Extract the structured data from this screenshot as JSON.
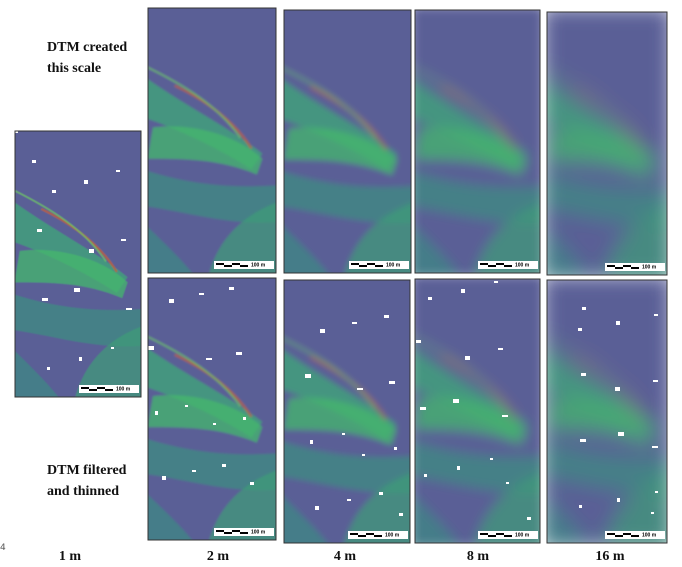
{
  "page_number": "4",
  "row_labels": {
    "top": [
      "DTM created",
      "this scale"
    ],
    "bottom": [
      "DTM filtered",
      "and thinned"
    ]
  },
  "columns": [
    "1 m",
    "2 m",
    "4 m",
    "8 m",
    "16 m"
  ],
  "scale_bar": "100 m"
}
